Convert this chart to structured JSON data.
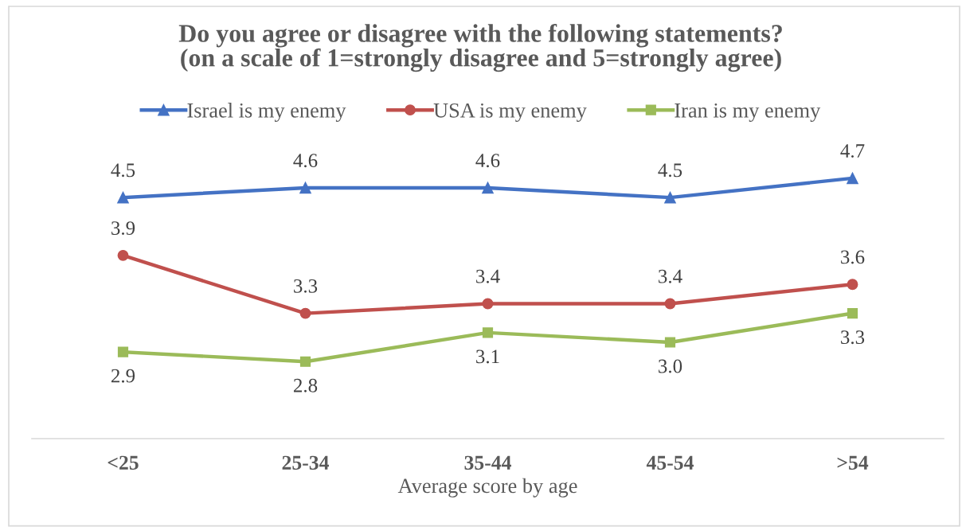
{
  "chart_data": {
    "type": "line",
    "title": "Do you agree or disagree with the following statements?\n(on a scale of 1=strongly disagree and 5=strongly agree)",
    "xlabel": "Average score by age",
    "categories": [
      "<25",
      "25-34",
      "35-44",
      "45-54",
      ">54"
    ],
    "series": [
      {
        "name": "Israel is my enemy",
        "color": "#4472c4",
        "marker": "triangle",
        "values": [
          4.5,
          4.6,
          4.6,
          4.5,
          4.7
        ],
        "value_labels": [
          "4.5",
          "4.6",
          "4.6",
          "4.5",
          "4.7"
        ]
      },
      {
        "name": "USA is my enemy",
        "color": "#c0504d",
        "marker": "circle",
        "values": [
          3.9,
          3.3,
          3.4,
          3.4,
          3.6
        ],
        "value_labels": [
          "3.9",
          "3.3",
          "3.4",
          "3.4",
          "3.6"
        ]
      },
      {
        "name": "Iran is my enemy",
        "color": "#9bbb59",
        "marker": "square",
        "values": [
          2.9,
          2.8,
          3.1,
          3.0,
          3.3
        ],
        "value_labels": [
          "2.9",
          "2.8",
          "3.1",
          "3.0",
          "3.3"
        ]
      }
    ],
    "tick_labels": "x",
    "legend": "top",
    "line_style": "solid"
  }
}
